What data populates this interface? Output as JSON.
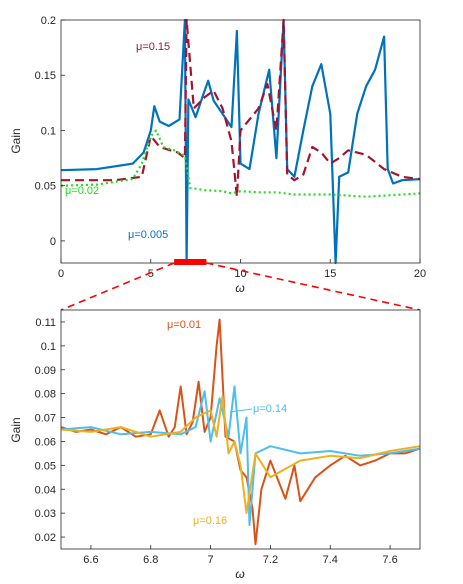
{
  "colors": {
    "blue": "#0072BD",
    "darkred": "#A2142F",
    "green": "#22DD22",
    "orange": "#D95319",
    "lightblue": "#4DBEEE",
    "yellow": "#EDB120",
    "highlight": "#FF0000"
  },
  "chart_data": [
    {
      "type": "line",
      "xlabel": "ω",
      "ylabel": "Gain",
      "xlim": [
        0,
        20
      ],
      "ylim": [
        -0.02,
        0.2
      ],
      "xticks": [
        "0",
        "5",
        "10",
        "15",
        "20"
      ],
      "yticks": [
        "0",
        "0.05",
        "0.1",
        "0.15",
        "0.2"
      ],
      "highlight_range": [
        6.3,
        8.1
      ],
      "series": [
        {
          "name": "μ=0.005",
          "color": "#0072BD",
          "style": "solid",
          "x": [
            0,
            2,
            4,
            4.6,
            5.0,
            5.2,
            5.5,
            6.0,
            6.6,
            6.9,
            7.0,
            7.1,
            7.5,
            8.0,
            8.2,
            8.5,
            9.0,
            9.5,
            9.8,
            10.0,
            10.5,
            11.0,
            11.6,
            12.0,
            12.4,
            12.6,
            13.0,
            13.5,
            14.0,
            14.5,
            15.0,
            15.3,
            15.5,
            16.0,
            16.5,
            17.0,
            17.5,
            18.0,
            18.2,
            18.5,
            19.0,
            20.0
          ],
          "y": [
            0.064,
            0.065,
            0.07,
            0.08,
            0.1,
            0.122,
            0.108,
            0.104,
            0.11,
            0.2,
            -0.02,
            0.128,
            0.112,
            0.136,
            0.145,
            0.127,
            0.115,
            0.103,
            0.19,
            0.07,
            0.065,
            0.115,
            0.155,
            0.075,
            0.2,
            0.065,
            0.058,
            0.1,
            0.14,
            0.16,
            0.115,
            -0.02,
            0.058,
            0.062,
            0.115,
            0.14,
            0.155,
            0.185,
            0.065,
            0.052,
            0.055,
            0.056
          ]
        },
        {
          "name": "μ=0.15",
          "color": "#A2142F",
          "style": "dashed",
          "x": [
            0,
            3,
            4.5,
            5.0,
            5.5,
            6.5,
            6.9,
            7.0,
            7.4,
            8.0,
            8.5,
            9.0,
            9.5,
            9.8,
            10.0,
            11.0,
            11.5,
            12.0,
            12.4,
            12.6,
            13.0,
            13.5,
            14.0,
            14.5,
            15.0,
            15.5,
            16.0,
            17.0,
            18.0,
            19.0,
            20.0
          ],
          "y": [
            0.055,
            0.055,
            0.058,
            0.095,
            0.085,
            0.08,
            0.075,
            0.2,
            0.12,
            0.13,
            0.136,
            0.12,
            0.09,
            0.04,
            0.1,
            0.12,
            0.142,
            0.1,
            0.2,
            0.06,
            0.055,
            0.06,
            0.085,
            0.08,
            0.07,
            0.075,
            0.082,
            0.078,
            0.065,
            0.058,
            0.056
          ]
        },
        {
          "name": "μ=0.02",
          "color": "#22DD22",
          "style": "dotted",
          "x": [
            0,
            2,
            4,
            4.5,
            5.0,
            5.3,
            5.7,
            6.3,
            6.9,
            7.2,
            8.0,
            9.0,
            9.5,
            10,
            11,
            12,
            13,
            14,
            15,
            16,
            17,
            18,
            19,
            20
          ],
          "y": [
            0.05,
            0.051,
            0.056,
            0.07,
            0.095,
            0.1,
            0.085,
            0.082,
            0.077,
            0.048,
            0.046,
            0.045,
            0.043,
            0.045,
            0.044,
            0.044,
            0.042,
            0.042,
            0.042,
            0.041,
            0.04,
            0.041,
            0.042,
            0.043
          ]
        }
      ],
      "annotations": [
        "μ=0.15",
        "μ=0.02",
        "μ=0.005"
      ]
    },
    {
      "type": "line",
      "xlabel": "ω",
      "ylabel": "Gain",
      "xlim": [
        6.5,
        7.7
      ],
      "ylim": [
        0.015,
        0.115
      ],
      "xticks": [
        "6.6",
        "6.8",
        "7",
        "7.2",
        "7.4",
        "7.6"
      ],
      "yticks": [
        "0.02",
        "0.03",
        "0.04",
        "0.05",
        "0.06",
        "0.07",
        "0.08",
        "0.09",
        "0.1",
        "0.11"
      ],
      "series": [
        {
          "name": "μ=0.01",
          "color": "#D95319",
          "style": "solid",
          "x": [
            6.5,
            6.55,
            6.6,
            6.65,
            6.7,
            6.75,
            6.8,
            6.83,
            6.86,
            6.88,
            6.9,
            6.92,
            6.94,
            6.96,
            6.98,
            7.0,
            7.02,
            7.03,
            7.05,
            7.08,
            7.1,
            7.12,
            7.14,
            7.15,
            7.17,
            7.2,
            7.25,
            7.28,
            7.3,
            7.35,
            7.4,
            7.45,
            7.5,
            7.55,
            7.6,
            7.65,
            7.7
          ],
          "y": [
            0.066,
            0.064,
            0.065,
            0.063,
            0.066,
            0.062,
            0.063,
            0.073,
            0.062,
            0.066,
            0.083,
            0.063,
            0.068,
            0.085,
            0.064,
            0.07,
            0.1,
            0.111,
            0.062,
            0.06,
            0.048,
            0.045,
            0.032,
            0.017,
            0.04,
            0.052,
            0.036,
            0.05,
            0.035,
            0.045,
            0.05,
            0.054,
            0.05,
            0.052,
            0.055,
            0.055,
            0.057
          ]
        },
        {
          "name": "μ=0.14",
          "color": "#4DBEEE",
          "style": "solid",
          "x": [
            6.5,
            6.6,
            6.7,
            6.8,
            6.9,
            6.95,
            6.98,
            7.0,
            7.03,
            7.06,
            7.08,
            7.1,
            7.12,
            7.13,
            7.15,
            7.2,
            7.3,
            7.4,
            7.5,
            7.6,
            7.7
          ],
          "y": [
            0.065,
            0.066,
            0.063,
            0.064,
            0.063,
            0.066,
            0.081,
            0.06,
            0.078,
            0.062,
            0.083,
            0.055,
            0.07,
            0.025,
            0.055,
            0.058,
            0.055,
            0.056,
            0.054,
            0.055,
            0.057
          ]
        },
        {
          "name": "μ=0.16",
          "color": "#EDB120",
          "style": "solid",
          "x": [
            6.5,
            6.6,
            6.7,
            6.8,
            6.9,
            6.95,
            7.0,
            7.02,
            7.04,
            7.06,
            7.08,
            7.1,
            7.12,
            7.15,
            7.2,
            7.3,
            7.4,
            7.5,
            7.6,
            7.7
          ],
          "y": [
            0.065,
            0.064,
            0.066,
            0.062,
            0.064,
            0.07,
            0.073,
            0.062,
            0.079,
            0.055,
            0.06,
            0.05,
            0.03,
            0.055,
            0.045,
            0.052,
            0.054,
            0.053,
            0.056,
            0.058
          ]
        }
      ],
      "annotations": [
        "μ=0.01",
        "μ=0.14",
        "μ=0.16"
      ]
    }
  ]
}
